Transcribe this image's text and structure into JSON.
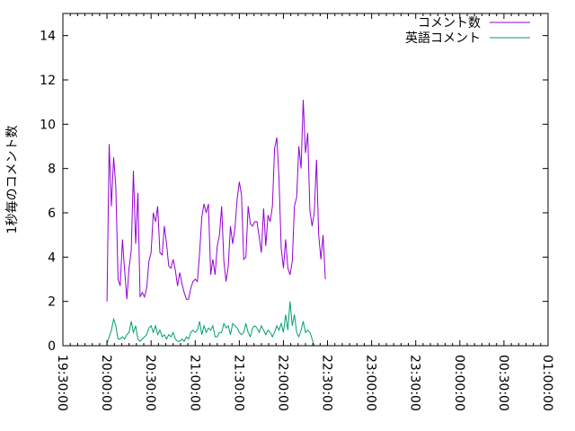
{
  "chart_data": {
    "type": "line",
    "title": "",
    "xlabel": "",
    "ylabel": "1秒毎のコメント数",
    "xlim": [
      "19:30:00",
      "01:00:00"
    ],
    "ylim": [
      0,
      15
    ],
    "x_tick_labels": [
      "19:30:00",
      "20:00:00",
      "20:30:00",
      "21:00:00",
      "21:30:00",
      "22:00:00",
      "22:30:00",
      "23:00:00",
      "23:30:00",
      "00:00:00",
      "00:30:00",
      "01:00:00"
    ],
    "y_tick_labels": [
      "0",
      "2",
      "4",
      "6",
      "8",
      "10",
      "12",
      "14"
    ],
    "grid": false,
    "legend_position": "top-right",
    "series": [
      {
        "name": "コメント数",
        "color": "#9400d3",
        "points": [
          [
            "20:00:00",
            2.0
          ],
          [
            "20:01:30",
            9.1
          ],
          [
            "20:03:00",
            6.3
          ],
          [
            "20:04:30",
            8.5
          ],
          [
            "20:06:00",
            7.2
          ],
          [
            "20:07:30",
            3.0
          ],
          [
            "20:09:00",
            2.7
          ],
          [
            "20:10:30",
            4.8
          ],
          [
            "20:12:00",
            3.4
          ],
          [
            "20:13:30",
            2.1
          ],
          [
            "20:15:00",
            3.5
          ],
          [
            "20:16:30",
            4.3
          ],
          [
            "20:18:00",
            7.9
          ],
          [
            "20:19:30",
            4.6
          ],
          [
            "20:21:00",
            6.9
          ],
          [
            "20:22:30",
            2.2
          ],
          [
            "20:24:00",
            2.4
          ],
          [
            "20:25:30",
            2.2
          ],
          [
            "20:27:00",
            2.6
          ],
          [
            "20:28:30",
            3.8
          ],
          [
            "20:30:00",
            4.2
          ],
          [
            "20:31:30",
            6.0
          ],
          [
            "20:33:00",
            5.6
          ],
          [
            "20:34:30",
            6.3
          ],
          [
            "20:36:00",
            4.2
          ],
          [
            "20:37:30",
            4.1
          ],
          [
            "20:39:00",
            5.4
          ],
          [
            "20:40:30",
            4.6
          ],
          [
            "20:42:00",
            3.6
          ],
          [
            "20:43:30",
            3.5
          ],
          [
            "20:45:00",
            3.9
          ],
          [
            "20:46:30",
            3.4
          ],
          [
            "20:48:00",
            2.7
          ],
          [
            "20:49:30",
            3.3
          ],
          [
            "20:51:00",
            2.8
          ],
          [
            "20:52:30",
            2.4
          ],
          [
            "20:54:00",
            2.1
          ],
          [
            "20:55:30",
            2.1
          ],
          [
            "20:57:00",
            2.6
          ],
          [
            "20:58:30",
            2.9
          ],
          [
            "21:00:00",
            3.0
          ],
          [
            "21:01:30",
            2.9
          ],
          [
            "21:03:00",
            4.2
          ],
          [
            "21:04:30",
            5.8
          ],
          [
            "21:06:00",
            6.4
          ],
          [
            "21:07:30",
            6.0
          ],
          [
            "21:09:00",
            6.4
          ],
          [
            "21:10:30",
            3.2
          ],
          [
            "21:12:00",
            3.9
          ],
          [
            "21:13:30",
            3.2
          ],
          [
            "21:15:00",
            4.5
          ],
          [
            "21:16:30",
            5.0
          ],
          [
            "21:18:00",
            6.3
          ],
          [
            "21:19:30",
            3.8
          ],
          [
            "21:21:00",
            2.9
          ],
          [
            "21:22:30",
            3.6
          ],
          [
            "21:24:00",
            5.4
          ],
          [
            "21:25:30",
            4.6
          ],
          [
            "21:27:00",
            5.3
          ],
          [
            "21:28:30",
            6.6
          ],
          [
            "21:30:00",
            7.4
          ],
          [
            "21:31:30",
            6.8
          ],
          [
            "21:33:00",
            3.9
          ],
          [
            "21:34:30",
            4.0
          ],
          [
            "21:36:00",
            6.3
          ],
          [
            "21:37:30",
            5.5
          ],
          [
            "21:39:00",
            5.4
          ],
          [
            "21:40:30",
            5.6
          ],
          [
            "21:42:00",
            5.6
          ],
          [
            "21:43:30",
            4.9
          ],
          [
            "21:45:00",
            4.2
          ],
          [
            "21:46:30",
            6.2
          ],
          [
            "21:48:00",
            4.5
          ],
          [
            "21:49:30",
            5.9
          ],
          [
            "21:51:00",
            5.6
          ],
          [
            "21:52:30",
            6.3
          ],
          [
            "21:54:00",
            8.9
          ],
          [
            "21:55:30",
            9.4
          ],
          [
            "21:57:00",
            7.6
          ],
          [
            "21:58:30",
            4.4
          ],
          [
            "22:00:00",
            3.5
          ],
          [
            "22:01:30",
            4.8
          ],
          [
            "22:03:00",
            3.5
          ],
          [
            "22:04:30",
            3.2
          ],
          [
            "22:06:00",
            3.8
          ],
          [
            "22:07:30",
            6.3
          ],
          [
            "22:09:00",
            6.7
          ],
          [
            "22:10:30",
            9.0
          ],
          [
            "22:12:00",
            8.0
          ],
          [
            "22:13:30",
            11.1
          ],
          [
            "22:15:00",
            8.7
          ],
          [
            "22:16:30",
            9.6
          ],
          [
            "22:18:00",
            6.1
          ],
          [
            "22:19:30",
            5.4
          ],
          [
            "22:21:00",
            6.0
          ],
          [
            "22:22:30",
            8.4
          ],
          [
            "22:24:00",
            5.0
          ],
          [
            "22:25:30",
            3.9
          ],
          [
            "22:27:00",
            5.0
          ],
          [
            "22:28:30",
            3.0
          ]
        ]
      },
      {
        "name": "英語コメント",
        "color": "#009e73",
        "points": [
          [
            "20:00:00",
            0.1
          ],
          [
            "20:01:30",
            0.4
          ],
          [
            "20:03:00",
            0.7
          ],
          [
            "20:04:30",
            1.2
          ],
          [
            "20:06:00",
            0.9
          ],
          [
            "20:07:30",
            0.3
          ],
          [
            "20:09:00",
            0.3
          ],
          [
            "20:10:30",
            0.4
          ],
          [
            "20:12:00",
            0.3
          ],
          [
            "20:13:30",
            0.5
          ],
          [
            "20:15:00",
            0.6
          ],
          [
            "20:16:30",
            1.1
          ],
          [
            "20:18:00",
            0.6
          ],
          [
            "20:19:30",
            0.9
          ],
          [
            "20:21:00",
            0.3
          ],
          [
            "20:22:30",
            0.2
          ],
          [
            "20:24:00",
            0.3
          ],
          [
            "20:25:30",
            0.4
          ],
          [
            "20:27:00",
            0.5
          ],
          [
            "20:28:30",
            0.8
          ],
          [
            "20:30:00",
            0.9
          ],
          [
            "20:31:30",
            0.6
          ],
          [
            "20:33:00",
            0.9
          ],
          [
            "20:34:30",
            0.5
          ],
          [
            "20:36:00",
            0.7
          ],
          [
            "20:37:30",
            0.4
          ],
          [
            "20:39:00",
            0.5
          ],
          [
            "20:40:30",
            0.3
          ],
          [
            "20:42:00",
            0.5
          ],
          [
            "20:43:30",
            0.4
          ],
          [
            "20:45:00",
            0.6
          ],
          [
            "20:46:30",
            0.3
          ],
          [
            "20:48:00",
            0.2
          ],
          [
            "20:49:30",
            0.2
          ],
          [
            "20:51:00",
            0.3
          ],
          [
            "20:52:30",
            0.2
          ],
          [
            "20:54:00",
            0.4
          ],
          [
            "20:55:30",
            0.3
          ],
          [
            "20:57:00",
            0.6
          ],
          [
            "20:58:30",
            0.7
          ],
          [
            "21:00:00",
            0.6
          ],
          [
            "21:01:30",
            0.7
          ],
          [
            "21:03:00",
            1.1
          ],
          [
            "21:04:30",
            0.5
          ],
          [
            "21:06:00",
            0.9
          ],
          [
            "21:07:30",
            0.6
          ],
          [
            "21:09:00",
            0.8
          ],
          [
            "21:10:30",
            0.7
          ],
          [
            "21:12:00",
            0.9
          ],
          [
            "21:13:30",
            0.4
          ],
          [
            "21:15:00",
            0.4
          ],
          [
            "21:16:30",
            0.6
          ],
          [
            "21:18:00",
            0.6
          ],
          [
            "21:19:30",
            1.0
          ],
          [
            "21:21:00",
            0.8
          ],
          [
            "21:22:30",
            0.9
          ],
          [
            "21:24:00",
            0.5
          ],
          [
            "21:25:30",
            1.0
          ],
          [
            "21:27:00",
            0.9
          ],
          [
            "21:28:30",
            0.8
          ],
          [
            "21:30:00",
            0.6
          ],
          [
            "21:31:30",
            0.5
          ],
          [
            "21:33:00",
            0.6
          ],
          [
            "21:34:30",
            1.0
          ],
          [
            "21:36:00",
            0.6
          ],
          [
            "21:37:30",
            0.4
          ],
          [
            "21:39:00",
            0.8
          ],
          [
            "21:40:30",
            0.9
          ],
          [
            "21:42:00",
            0.8
          ],
          [
            "21:43:30",
            0.6
          ],
          [
            "21:45:00",
            0.9
          ],
          [
            "21:46:30",
            0.7
          ],
          [
            "21:48:00",
            0.5
          ],
          [
            "21:49:30",
            0.7
          ],
          [
            "21:51:00",
            0.6
          ],
          [
            "21:52:30",
            0.4
          ],
          [
            "21:54:00",
            0.6
          ],
          [
            "21:55:30",
            0.9
          ],
          [
            "21:57:00",
            0.7
          ],
          [
            "21:58:30",
            1.0
          ],
          [
            "22:00:00",
            0.6
          ],
          [
            "22:01:30",
            1.4
          ],
          [
            "22:03:00",
            0.7
          ],
          [
            "22:04:30",
            2.0
          ],
          [
            "22:06:00",
            0.9
          ],
          [
            "22:07:30",
            1.4
          ],
          [
            "22:09:00",
            0.6
          ],
          [
            "22:10:30",
            0.4
          ],
          [
            "22:12:00",
            0.7
          ],
          [
            "22:13:30",
            1.1
          ],
          [
            "22:15:00",
            0.6
          ],
          [
            "22:16:30",
            0.7
          ],
          [
            "22:18:00",
            0.6
          ],
          [
            "22:19:30",
            0.3
          ],
          [
            "22:21:00",
            0.0
          ]
        ]
      }
    ]
  }
}
